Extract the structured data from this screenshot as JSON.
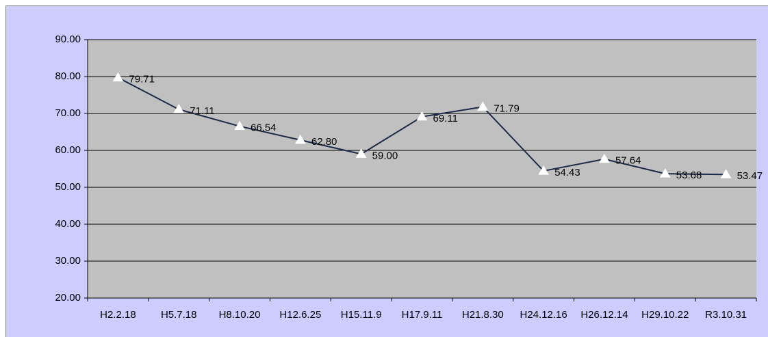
{
  "chart_data": {
    "type": "line",
    "categories": [
      "H2.2.18",
      "H5.7.18",
      "H8.10.20",
      "H12.6.25",
      "H15.11.9",
      "H17.9.11",
      "H21.8.30",
      "H24.12.16",
      "H26.12.14",
      "H29.10.22",
      "R3.10.31"
    ],
    "values": [
      79.71,
      71.11,
      66.54,
      62.8,
      59.0,
      69.11,
      71.79,
      54.43,
      57.64,
      53.68,
      53.47
    ],
    "value_labels": [
      "79.71",
      "71.11",
      "66.54",
      "62.80",
      "59.00",
      "69.11",
      "71.79",
      "54.43",
      "57.64",
      "53.68",
      "53.47"
    ],
    "color": "#1c2a48",
    "ylim": [
      20,
      90
    ],
    "yticks": [
      {
        "value": 20,
        "label": "20.00"
      },
      {
        "value": 30,
        "label": "30.00"
      },
      {
        "value": 40,
        "label": "40.00"
      },
      {
        "value": 50,
        "label": "50.00"
      },
      {
        "value": 60,
        "label": "60.00"
      },
      {
        "value": 70,
        "label": "70.00"
      },
      {
        "value": 80,
        "label": "80.00"
      },
      {
        "value": 90,
        "label": "90.00"
      }
    ],
    "grid": true
  }
}
